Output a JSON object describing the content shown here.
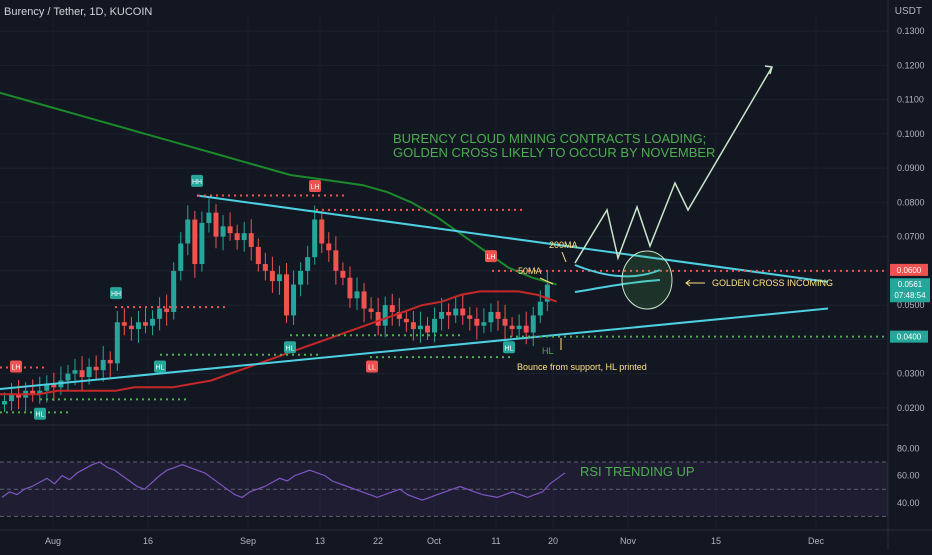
{
  "header": {
    "title": "Burency / Tether, 1D, KUCOIN",
    "unit": "USDT"
  },
  "colors": {
    "background": "#131722",
    "up": "#26a69a",
    "down": "#ef5350",
    "ma50": "#c62828",
    "ma200": "#1b8a2a",
    "trendline": "#4dd0e1",
    "annotation_green": "#4caf50",
    "annotation_yellow": "#ffe082",
    "rsi": "#7e57c2",
    "projection": "#c8e6c9"
  },
  "chart_data": [
    {
      "type": "candlestick",
      "title": "Burency / Tether, 1D, KUCOIN",
      "y_unit": "USDT",
      "ylim": [
        0.015,
        0.135
      ],
      "y_ticks": [
        "0.0200",
        "0.0300",
        "0.0400",
        "0.0500",
        "0.0600",
        "0.0700",
        "0.0800",
        "0.0900",
        "0.1000",
        "0.1100",
        "0.1200",
        "0.1300"
      ],
      "x_tick_labels": [
        "Aug",
        "16",
        "Sep",
        "13",
        "22",
        "Oct",
        "11",
        "20",
        "Nov",
        "15",
        "Dec"
      ],
      "last_price": "0.0561",
      "countdown": "07:48:54",
      "close_series": [
        0.022,
        0.024,
        0.023,
        0.025,
        0.024,
        0.025,
        0.027,
        0.026,
        0.028,
        0.03,
        0.031,
        0.029,
        0.032,
        0.031,
        0.034,
        0.033,
        0.045,
        0.044,
        0.043,
        0.045,
        0.044,
        0.046,
        0.049,
        0.048,
        0.06,
        0.068,
        0.075,
        0.062,
        0.074,
        0.077,
        0.07,
        0.073,
        0.071,
        0.069,
        0.071,
        0.067,
        0.062,
        0.06,
        0.057,
        0.059,
        0.047,
        0.056,
        0.06,
        0.064,
        0.075,
        0.068,
        0.066,
        0.06,
        0.058,
        0.052,
        0.054,
        0.049,
        0.048,
        0.044,
        0.05,
        0.048,
        0.046,
        0.045,
        0.043,
        0.044,
        0.042,
        0.046,
        0.048,
        0.047,
        0.049,
        0.047,
        0.046,
        0.044,
        0.045,
        0.048,
        0.046,
        0.044,
        0.043,
        0.044,
        0.042,
        0.047,
        0.051,
        0.056
      ],
      "series": [
        {
          "name": "50MA",
          "values": [
            0.024,
            0.024,
            0.024,
            0.025,
            0.025,
            0.025,
            0.025,
            0.026,
            0.026,
            0.026,
            0.027,
            0.028,
            0.03,
            0.032,
            0.034,
            0.036,
            0.038,
            0.04,
            0.042,
            0.044,
            0.046,
            0.048,
            0.05,
            0.051,
            0.053,
            0.054,
            0.054,
            0.054,
            0.053,
            0.051
          ]
        },
        {
          "name": "200MA",
          "values": [
            0.112,
            0.11,
            0.108,
            0.106,
            0.104,
            0.102,
            0.1,
            0.098,
            0.096,
            0.094,
            0.092,
            0.09,
            0.088,
            0.087,
            0.086,
            0.085,
            0.083,
            0.08,
            0.076,
            0.071,
            0.066,
            0.061,
            0.058,
            0.056
          ]
        }
      ],
      "horizontal_levels": [
        {
          "label": "HH",
          "value": 0.082
        },
        {
          "label": "LH",
          "value": 0.082
        },
        {
          "label": "LH",
          "value": 0.078
        },
        {
          "label": "LH",
          "value": 0.06
        },
        {
          "label": "HH",
          "value": 0.049
        },
        {
          "label": "HL",
          "value": 0.036
        },
        {
          "label": "HL",
          "value": 0.041
        },
        {
          "label": "LL",
          "value": 0.035
        },
        {
          "label": "HL",
          "value": 0.04
        },
        {
          "label": "HL",
          "value": 0.019
        }
      ],
      "annotations": [
        "BURENCY CLOUD MINING CONTRACTS LOADING;",
        "GOLDEN CROSS LIKELY TO OCCUR BY NOVEMBER",
        "200MA",
        "50MA",
        "GOLDEN CROSS INCOMING",
        "Bounce from support, HL printed",
        "HL"
      ]
    },
    {
      "type": "line",
      "title": "",
      "ylim": [
        20,
        95
      ],
      "y_ticks": [
        "40.00",
        "60.00",
        "80.00"
      ],
      "band": [
        30,
        70
      ],
      "annotation": "RSI TRENDING UP",
      "series": [
        {
          "name": "",
          "values": [
            44,
            48,
            46,
            50,
            52,
            55,
            58,
            54,
            60,
            57,
            62,
            65,
            68,
            70,
            66,
            64,
            60,
            56,
            52,
            50,
            55,
            60,
            64,
            66,
            68,
            66,
            64,
            62,
            58,
            54,
            50,
            46,
            44,
            48,
            50,
            52,
            55,
            58,
            56,
            60,
            62,
            64,
            62,
            60,
            56,
            54,
            52,
            50,
            48,
            46,
            44,
            46,
            48,
            50,
            46,
            44,
            42,
            44,
            46,
            48,
            50,
            52,
            50,
            48,
            46,
            45,
            44,
            46,
            48,
            46,
            44,
            46,
            48,
            54,
            58,
            62
          ]
        }
      ]
    }
  ]
}
